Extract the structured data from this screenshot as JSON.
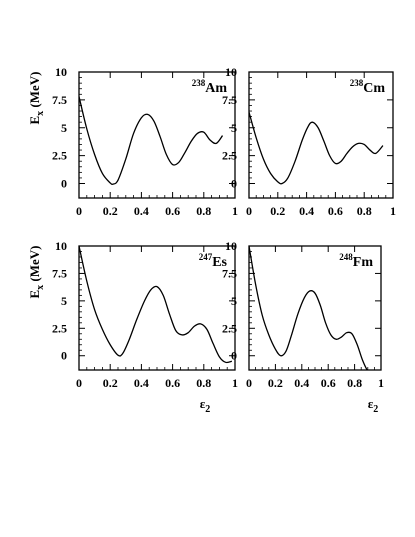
{
  "chart_data": [
    {
      "type": "line",
      "label_mass": "238",
      "label_element": "Am",
      "ylabel_main": "E",
      "ylabel_sub": "x",
      "ylabel_unit": " (MeV)",
      "xlabel_main": "",
      "xlabel_sub": "",
      "xlim": [
        0,
        1
      ],
      "ylim": [
        -1.3,
        10
      ],
      "xticks": [
        "0",
        "0.2",
        "0.4",
        "0.6",
        "0.8",
        "1"
      ],
      "yticks": [
        "0",
        "2.5",
        "5",
        "7.5",
        "10"
      ],
      "series": [
        {
          "x": [
            0,
            0.05,
            0.1,
            0.15,
            0.2,
            0.22,
            0.25,
            0.3,
            0.35,
            0.4,
            0.44,
            0.48,
            0.52,
            0.56,
            0.6,
            0.64,
            0.68,
            0.72,
            0.76,
            0.8,
            0.84,
            0.88,
            0.92
          ],
          "y": [
            7.8,
            4.9,
            2.6,
            0.9,
            0.05,
            -0.05,
            0.3,
            2.2,
            4.5,
            5.9,
            6.2,
            5.6,
            4.2,
            2.6,
            1.7,
            1.9,
            2.8,
            3.8,
            4.5,
            4.6,
            3.9,
            3.6,
            4.3
          ]
        }
      ]
    },
    {
      "type": "line",
      "label_mass": "238",
      "label_element": "Cm",
      "ylabel_main": "",
      "ylabel_sub": "",
      "ylabel_unit": "",
      "xlabel_main": "",
      "xlabel_sub": "",
      "xlim": [
        0,
        1
      ],
      "ylim": [
        -1.3,
        10
      ],
      "xticks": [
        "0",
        "0.2",
        "0.4",
        "0.6",
        "0.8",
        "1"
      ],
      "yticks": [
        "0",
        "2.5",
        "5",
        "7.5",
        "10"
      ],
      "series": [
        {
          "x": [
            0,
            0.05,
            0.1,
            0.15,
            0.2,
            0.23,
            0.27,
            0.32,
            0.37,
            0.41,
            0.44,
            0.48,
            0.52,
            0.56,
            0.6,
            0.64,
            0.68,
            0.72,
            0.76,
            0.8,
            0.84,
            0.88,
            0.93
          ],
          "y": [
            6.4,
            4.1,
            2.2,
            0.9,
            0.15,
            0.0,
            0.5,
            2.0,
            3.9,
            5.1,
            5.5,
            5.0,
            3.8,
            2.5,
            1.8,
            2.0,
            2.7,
            3.3,
            3.6,
            3.5,
            3.0,
            2.7,
            3.4
          ]
        }
      ]
    },
    {
      "type": "line",
      "label_mass": "247",
      "label_element": "Es",
      "ylabel_main": "E",
      "ylabel_sub": "x",
      "ylabel_unit": " (MeV)",
      "xlabel_main": "ε",
      "xlabel_sub": "2",
      "xlim": [
        0,
        1
      ],
      "ylim": [
        -1.3,
        10
      ],
      "xticks": [
        "0",
        "0.2",
        "0.4",
        "0.6",
        "0.8",
        "1"
      ],
      "yticks": [
        "0",
        "2.5",
        "5",
        "7.5",
        "10"
      ],
      "series": [
        {
          "x": [
            0,
            0.05,
            0.1,
            0.15,
            0.2,
            0.25,
            0.28,
            0.32,
            0.37,
            0.42,
            0.46,
            0.5,
            0.54,
            0.58,
            0.62,
            0.66,
            0.7,
            0.74,
            0.78,
            0.82,
            0.86,
            0.9,
            0.94,
            0.98
          ],
          "y": [
            10.0,
            6.8,
            4.2,
            2.4,
            1.0,
            0.05,
            0.2,
            1.4,
            3.3,
            5.0,
            6.0,
            6.3,
            5.5,
            3.8,
            2.3,
            1.9,
            2.1,
            2.7,
            2.9,
            2.4,
            1.1,
            -0.1,
            -0.6,
            -0.5
          ]
        }
      ]
    },
    {
      "type": "line",
      "label_mass": "248",
      "label_element": "Fm",
      "ylabel_main": "",
      "ylabel_sub": "",
      "ylabel_unit": "",
      "xlabel_main": "ε",
      "xlabel_sub": "2",
      "xlim": [
        0,
        1
      ],
      "ylim": [
        -1.3,
        10
      ],
      "xticks": [
        "0",
        "0.2",
        "0.4",
        "0.6",
        "0.8",
        "1"
      ],
      "yticks": [
        "0",
        "2.5",
        "5",
        "7.5",
        "10"
      ],
      "series": [
        {
          "x": [
            0,
            0.05,
            0.1,
            0.15,
            0.2,
            0.24,
            0.28,
            0.32,
            0.37,
            0.42,
            0.46,
            0.5,
            0.54,
            0.58,
            0.62,
            0.66,
            0.7,
            0.74,
            0.78,
            0.82,
            0.86,
            0.9,
            0.94,
            0.97
          ],
          "y": [
            10.0,
            6.5,
            3.7,
            1.9,
            0.6,
            0.0,
            0.4,
            1.8,
            3.8,
            5.3,
            5.9,
            5.7,
            4.6,
            3.0,
            1.9,
            1.5,
            1.7,
            2.1,
            2.0,
            1.0,
            -0.4,
            -1.4,
            -1.9,
            -1.9
          ]
        }
      ]
    }
  ]
}
